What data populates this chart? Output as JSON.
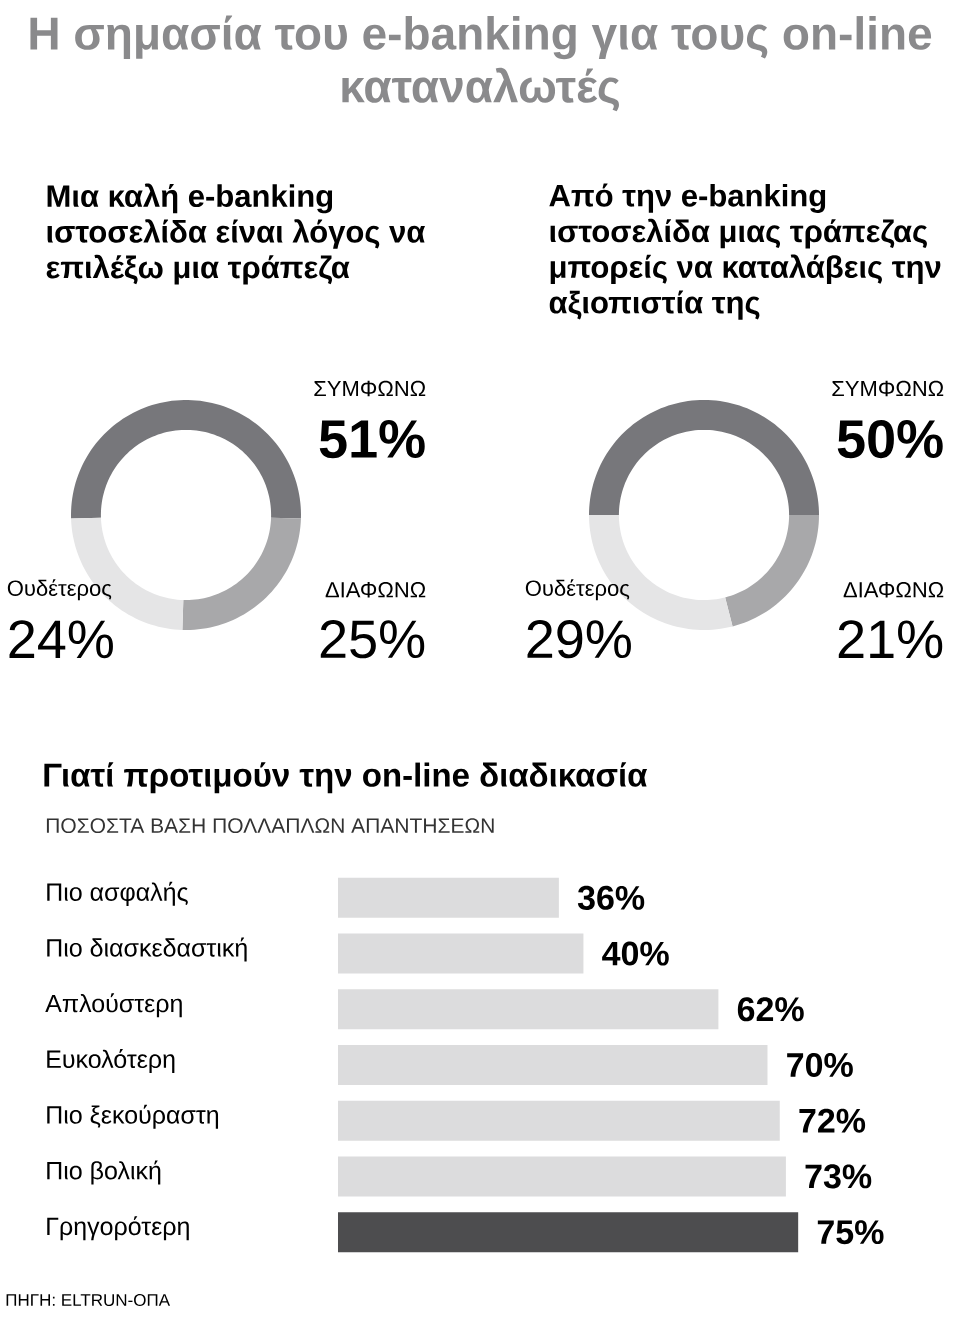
{
  "chart_data": [
    {
      "type": "donut",
      "title": "Η σημασία του e-banking για τους on-line καταναλωτές",
      "subtitle": "Μια καλή e-banking ιστοσελίδα είναι λόγος να επιλέξω μια τράπεζα",
      "categories": [
        "ΣΥΜΦΩΝΩ",
        "ΔΙΑΦΩΝΩ",
        "Ουδέτερος"
      ],
      "values": [
        51,
        25,
        24
      ],
      "value_labels": [
        "51%",
        "25%",
        "24%"
      ],
      "colors": [
        "#77777b",
        "#a8a8aa",
        "#e5e5e6"
      ]
    },
    {
      "type": "donut",
      "title": "Από την e-banking ιστοσελίδα μιας τράπεζας μπορείς να καταλάβεις την αξιοπιστία της",
      "categories": [
        "ΣΥΜΦΩΝΩ",
        "ΔΙΑΦΩΝΩ",
        "Ουδέτερος"
      ],
      "values": [
        50,
        21,
        29
      ],
      "value_labels": [
        "50%",
        "21%",
        "29%"
      ],
      "colors": [
        "#77777b",
        "#a8a8aa",
        "#e5e5e6"
      ]
    },
    {
      "type": "bar",
      "orientation": "horizontal",
      "title": "Γιατί προτιμούν την on-line διαδικασία",
      "subtitle": "ΠΟΣΟΣΤΑ ΒΑΣΗ ΠΟΛΛΑΠΛΩΝ ΑΠΑΝΤΗΣΕΩΝ",
      "categories": [
        "Πιο ασφαλής",
        "Πιο διασκεδαστική",
        "Απλούστερη",
        "Ευκολότερη",
        "Πιο ξεκούραστη",
        "Πιο βολική",
        "Γρηγορότερη"
      ],
      "values": [
        36,
        40,
        62,
        70,
        72,
        73,
        75
      ],
      "value_labels": [
        "36%",
        "40%",
        "62%",
        "70%",
        "72%",
        "73%",
        "75%"
      ],
      "colors": [
        "#dcdcdd",
        "#dcdcdd",
        "#dcdcdd",
        "#dcdcdd",
        "#dcdcdd",
        "#dcdcdd",
        "#4d4d4f"
      ],
      "annotations": [
        "ΠΗΓΗ: ELTRUN-ΟΠΑ"
      ]
    }
  ]
}
